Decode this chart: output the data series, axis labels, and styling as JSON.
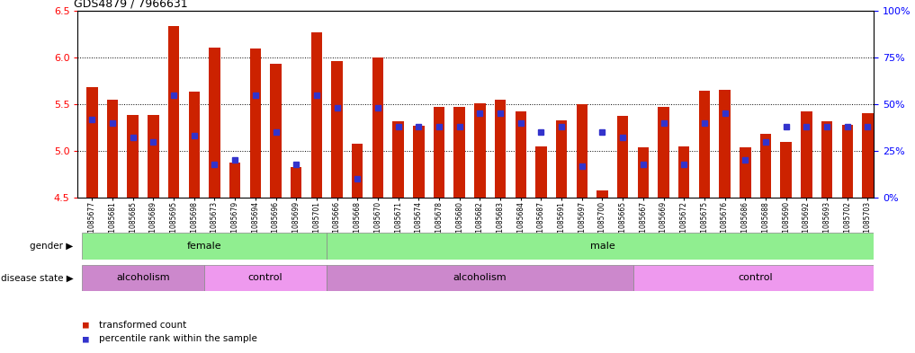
{
  "title": "GDS4879 / 7966631",
  "samples": [
    "GSM1085677",
    "GSM1085681",
    "GSM1085685",
    "GSM1085689",
    "GSM1085695",
    "GSM1085698",
    "GSM1085673",
    "GSM1085679",
    "GSM1085694",
    "GSM1085696",
    "GSM1085699",
    "GSM1085701",
    "GSM1085666",
    "GSM1085668",
    "GSM1085670",
    "GSM1085671",
    "GSM1085674",
    "GSM1085678",
    "GSM1085680",
    "GSM1085682",
    "GSM1085683",
    "GSM1085684",
    "GSM1085687",
    "GSM1085691",
    "GSM1085697",
    "GSM1085700",
    "GSM1085665",
    "GSM1085667",
    "GSM1085669",
    "GSM1085672",
    "GSM1085675",
    "GSM1085676",
    "GSM1085686",
    "GSM1085688",
    "GSM1085690",
    "GSM1085692",
    "GSM1085693",
    "GSM1085702",
    "GSM1085703"
  ],
  "bar_values": [
    5.68,
    5.55,
    5.38,
    5.38,
    6.33,
    5.63,
    6.1,
    4.88,
    6.09,
    5.93,
    4.83,
    6.27,
    5.96,
    5.08,
    6.0,
    5.32,
    5.27,
    5.47,
    5.47,
    5.51,
    5.55,
    5.42,
    5.05,
    5.33,
    5.5,
    4.58,
    5.37,
    5.04,
    5.47,
    5.05,
    5.64,
    5.65,
    5.04,
    5.18,
    5.1,
    5.42,
    5.32,
    5.28,
    5.4
  ],
  "percentile_values": [
    42,
    40,
    32,
    30,
    55,
    33,
    18,
    20,
    55,
    35,
    18,
    55,
    48,
    10,
    48,
    38,
    38,
    38,
    38,
    45,
    45,
    40,
    35,
    38,
    17,
    35,
    32,
    18,
    40,
    18,
    40,
    45,
    20,
    30,
    38,
    38,
    38,
    38,
    38
  ],
  "ylim_left": [
    4.5,
    6.5
  ],
  "ylim_right": [
    0,
    100
  ],
  "yticks_left": [
    4.5,
    5.0,
    5.5,
    6.0,
    6.5
  ],
  "yticks_right": [
    0,
    25,
    50,
    75,
    100
  ],
  "ytick_labels_right": [
    "0%",
    "25%",
    "50%",
    "75%",
    "100%"
  ],
  "bar_color": "#CC2200",
  "dot_color": "#3333CC",
  "bar_bottom": 4.5,
  "xlim": [
    -0.7,
    38.3
  ],
  "female_range": [
    0,
    11
  ],
  "male_range": [
    12,
    38
  ],
  "disease_segs": [
    {
      "label": "alcoholism",
      "start": 0,
      "end": 5,
      "color": "#CC88CC"
    },
    {
      "label": "control",
      "start": 6,
      "end": 11,
      "color": "#EE99EE"
    },
    {
      "label": "alcoholism",
      "start": 12,
      "end": 26,
      "color": "#CC88CC"
    },
    {
      "label": "control",
      "start": 27,
      "end": 38,
      "color": "#EE99EE"
    }
  ]
}
